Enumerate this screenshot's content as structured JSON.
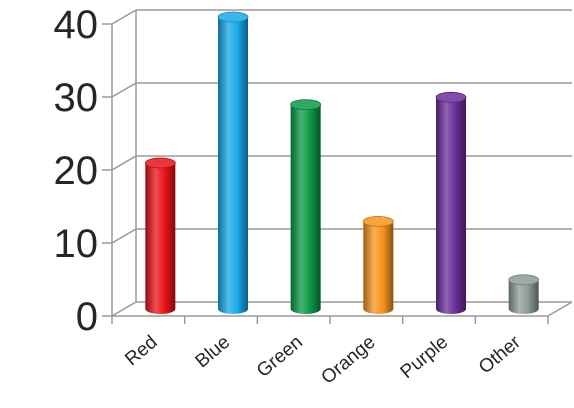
{
  "chart_data": {
    "type": "bar",
    "title": "",
    "xlabel": "",
    "ylabel": "",
    "ylim": [
      0,
      40
    ],
    "yticks": [
      0,
      10,
      20,
      30,
      40
    ],
    "grid": true,
    "style": "3d-cylinder",
    "categories": [
      "Red",
      "Blue",
      "Green",
      "Orange",
      "Purple",
      "Other"
    ],
    "values": [
      20,
      40,
      28,
      12,
      29,
      4
    ],
    "colors": [
      "#e8131a",
      "#17a9e8",
      "#0d9a45",
      "#f7941d",
      "#6b2d9a",
      "#8c9c94"
    ]
  }
}
